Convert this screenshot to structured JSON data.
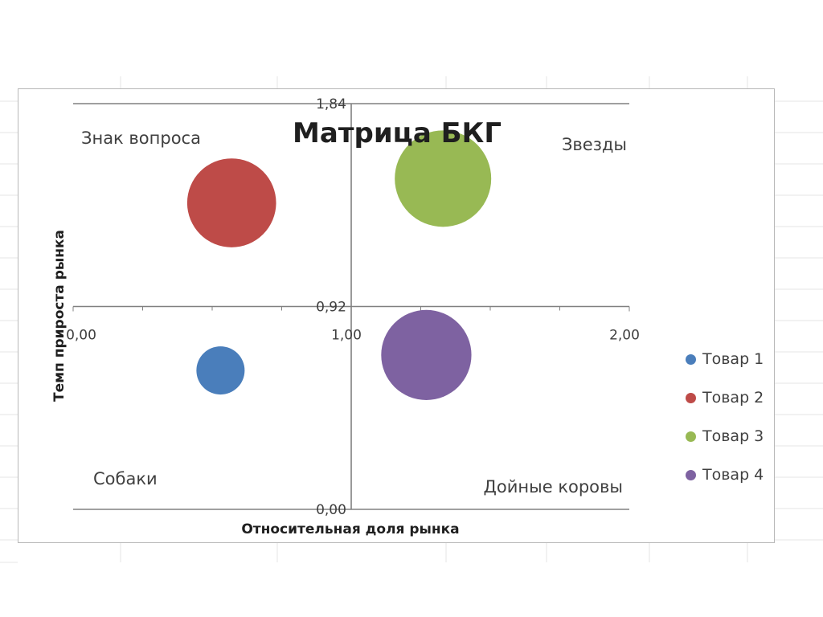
{
  "chart_data": {
    "type": "bubble",
    "title": "Матрица БКГ",
    "xlabel": "Относительная  доля рынка",
    "ylabel": "Темп прироста рынка",
    "xlim": [
      0,
      2
    ],
    "ylim": [
      0,
      1.84
    ],
    "x_tick_labels": [
      "0,00",
      "1,00",
      "2,00"
    ],
    "y_tick_labels": [
      "0,00",
      "0,92",
      "1,84"
    ],
    "x_tick_values": [
      0,
      1,
      2
    ],
    "y_tick_values": [
      0,
      0.92,
      1.84
    ],
    "grid": false,
    "legend_position": "right",
    "quadrant_labels": {
      "top_left": "Знак вопроса",
      "top_right": "Звезды",
      "bottom_left": "Собаки",
      "bottom_right": "Дойные коровы"
    },
    "series": [
      {
        "name": "Товар 1",
        "x": 0.53,
        "y": 0.63,
        "size": 1.0,
        "color": "#4a7ebb"
      },
      {
        "name": "Товар 2",
        "x": 0.57,
        "y": 1.39,
        "size": 3.4,
        "color": "#be4b48"
      },
      {
        "name": "Товар 3",
        "x": 1.33,
        "y": 1.5,
        "size": 4.0,
        "color": "#98b954"
      },
      {
        "name": "Товар 4",
        "x": 1.27,
        "y": 0.7,
        "size": 3.5,
        "color": "#7e62a1"
      }
    ]
  }
}
